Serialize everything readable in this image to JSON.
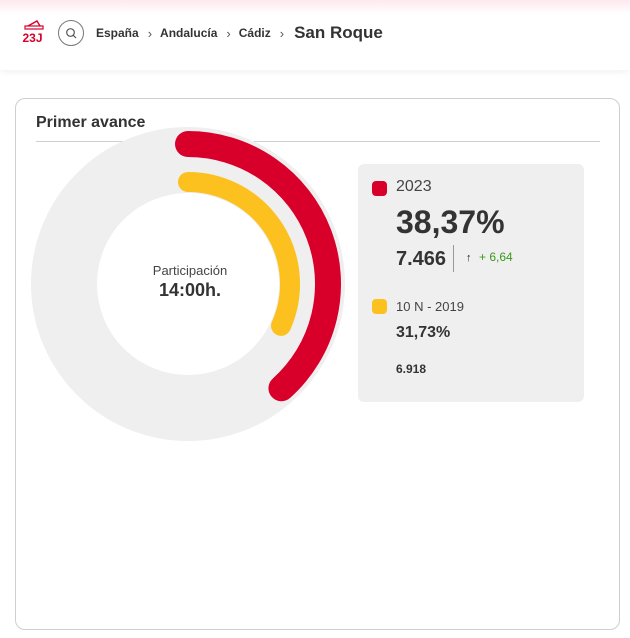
{
  "header": {
    "logo_icon": "ballot-box-23j-logo",
    "search_icon": "search-icon",
    "breadcrumb": [
      "España",
      "Andalucía",
      "Cádiz"
    ],
    "separator": "›",
    "current": "San Roque"
  },
  "card": {
    "title": "Primer avance"
  },
  "participation": {
    "label": "Participación",
    "time": "14:00h.",
    "current_pct": 38.37,
    "previous_pct": 31.73
  },
  "legend": {
    "current": {
      "label": "2023",
      "percent": "38,37%",
      "count": "7.466",
      "trend_icon": "arrow-up-icon",
      "trend_symbol": "↑",
      "delta": "+ 6,64",
      "color": "#d8002b"
    },
    "previous": {
      "label": "10 N - 2019",
      "percent": "31,73%",
      "count": "6.918",
      "color": "#fcc11e"
    }
  },
  "colors": {
    "track": "#efefef",
    "current": "#d8002b",
    "previous": "#fcc11e",
    "delta_positive": "#3a9a1c"
  }
}
